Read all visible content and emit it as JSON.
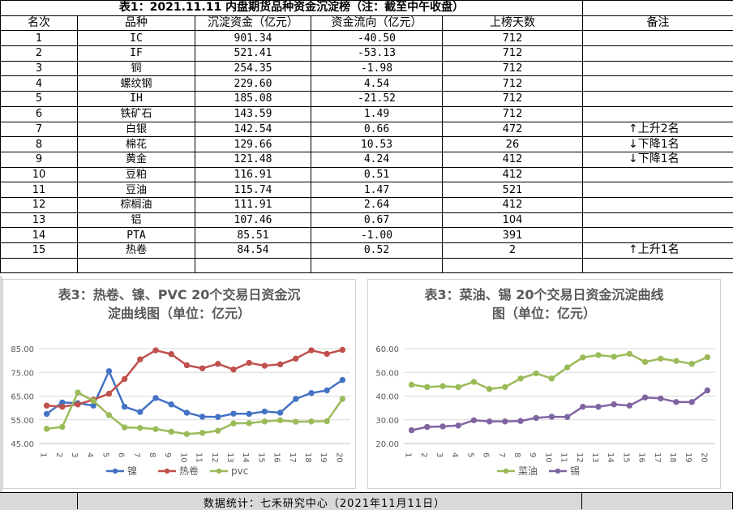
{
  "table": {
    "title": "表1：2021.11.11 内盘期货品种资金沉淀榜（注：截至中午收盘）",
    "headers": [
      "名次",
      "品种",
      "沉淀资金（亿元）",
      "资金流向（亿元）",
      "上榜天数",
      "备注"
    ],
    "rows": [
      {
        "rank": "1",
        "name": "IC",
        "capital": "901.34",
        "flow": "-40.50",
        "days": "712",
        "note": ""
      },
      {
        "rank": "2",
        "name": "IF",
        "capital": "521.41",
        "flow": "-53.13",
        "days": "712",
        "note": ""
      },
      {
        "rank": "3",
        "name": "铜",
        "capital": "254.35",
        "flow": "-1.98",
        "days": "712",
        "note": ""
      },
      {
        "rank": "4",
        "name": "螺纹钢",
        "capital": "229.60",
        "flow": "4.54",
        "days": "712",
        "note": ""
      },
      {
        "rank": "5",
        "name": "IH",
        "capital": "185.08",
        "flow": "-21.52",
        "days": "712",
        "note": ""
      },
      {
        "rank": "6",
        "name": "铁矿石",
        "capital": "143.59",
        "flow": "1.49",
        "days": "712",
        "note": ""
      },
      {
        "rank": "7",
        "name": "白银",
        "capital": "142.54",
        "flow": "0.66",
        "days": "472",
        "note": "↑上升2名"
      },
      {
        "rank": "8",
        "name": "棉花",
        "capital": "129.66",
        "flow": "10.53",
        "days": "26",
        "note": "↓下降1名"
      },
      {
        "rank": "9",
        "name": "黄金",
        "capital": "121.48",
        "flow": "4.24",
        "days": "412",
        "note": "↓下降1名"
      },
      {
        "rank": "10",
        "name": "豆粕",
        "capital": "116.91",
        "flow": "0.51",
        "days": "412",
        "note": ""
      },
      {
        "rank": "11",
        "name": "豆油",
        "capital": "115.74",
        "flow": "1.47",
        "days": "521",
        "note": ""
      },
      {
        "rank": "12",
        "name": "棕榈油",
        "capital": "111.91",
        "flow": "2.64",
        "days": "412",
        "note": ""
      },
      {
        "rank": "13",
        "name": "铝",
        "capital": "107.46",
        "flow": "0.67",
        "days": "104",
        "note": ""
      },
      {
        "rank": "14",
        "name": "PTA",
        "capital": "85.51",
        "flow": "-1.00",
        "days": "391",
        "note": ""
      },
      {
        "rank": "15",
        "name": "热卷",
        "capital": "84.54",
        "flow": "0.52",
        "days": "2",
        "note": "↑上升1名"
      }
    ]
  },
  "footer": {
    "text": "数据统计：七禾研究中心（2021年11月11日）"
  },
  "chart_data": [
    {
      "type": "line",
      "title": "表3：热卷、镍、PVC 20个交易日资金沉淀曲线图（单位：亿元）",
      "title_line1": "表3：热卷、镍、PVC 20个交易日资金沉",
      "title_line2": "淀曲线图（单位：亿元）",
      "x": [
        "1",
        "2",
        "3",
        "4",
        "5",
        "6",
        "7",
        "8",
        "9",
        "10",
        "11",
        "12",
        "13",
        "14",
        "15",
        "16",
        "17",
        "18",
        "19",
        "20"
      ],
      "ylim": [
        45,
        85
      ],
      "yticks": [
        45,
        55,
        65,
        75,
        85
      ],
      "ytick_labels": [
        "45.00",
        "55.00",
        "65.00",
        "75.00",
        "85.00"
      ],
      "grid": true,
      "legend": "bottom",
      "series": [
        {
          "name": "镍",
          "color": "#4472c4",
          "values": [
            57.5,
            62.3,
            62,
            61,
            75.5,
            60.5,
            58.3,
            64.2,
            61.5,
            58,
            56.3,
            56.2,
            57.6,
            57.5,
            58.5,
            58,
            63.8,
            66.3,
            67.4,
            71.8
          ]
        },
        {
          "name": "热卷",
          "color": "#c0504d",
          "values": [
            61,
            60.5,
            61.5,
            63.5,
            66,
            72.2,
            80.5,
            84.3,
            82.7,
            78,
            76.7,
            78.6,
            76.2,
            79,
            77.8,
            78.4,
            80.8,
            84.3,
            82.8,
            84.5
          ]
        },
        {
          "name": "pvc",
          "color": "#9bbb59",
          "values": [
            51.2,
            52,
            66.5,
            63,
            57,
            51.8,
            51.6,
            51.1,
            50,
            49,
            49.5,
            50.4,
            53.5,
            53.6,
            54.3,
            54.8,
            54.2,
            54.3,
            54.4,
            63.8
          ]
        }
      ]
    },
    {
      "type": "line",
      "title": "表3：菜油、锡 20个交易日资金沉淀曲线图（单位：亿元）",
      "title_line1": "表3：菜油、锡 20个交易日资金沉淀曲线",
      "title_line2": "图（单位：亿元）",
      "x": [
        "1",
        "2",
        "3",
        "4",
        "5",
        "6",
        "7",
        "8",
        "9",
        "10",
        "11",
        "12",
        "13",
        "14",
        "15",
        "16",
        "17",
        "18",
        "19",
        "20"
      ],
      "ylim": [
        20,
        60
      ],
      "yticks": [
        20,
        30,
        40,
        50,
        60
      ],
      "ytick_labels": [
        "20.00",
        "30.00",
        "40.00",
        "50.00",
        "60.00"
      ],
      "grid": true,
      "legend": "bottom",
      "series": [
        {
          "name": "菜油",
          "color": "#9bbb59",
          "values": [
            44.8,
            43.8,
            44.2,
            43.8,
            46,
            43,
            43.8,
            47.4,
            49.6,
            47.4,
            52.1,
            56.3,
            57.3,
            56.6,
            57.8,
            54.4,
            55.8,
            54.8,
            53.6,
            56.4
          ]
        },
        {
          "name": "锡",
          "color": "#8064a2",
          "values": [
            25.6,
            27,
            27.2,
            27.6,
            29.8,
            29.3,
            29.3,
            29.5,
            30.8,
            31.3,
            31.2,
            35.5,
            35.5,
            36.5,
            36,
            39.4,
            39,
            37.5,
            37.5,
            42.4
          ]
        }
      ]
    }
  ]
}
